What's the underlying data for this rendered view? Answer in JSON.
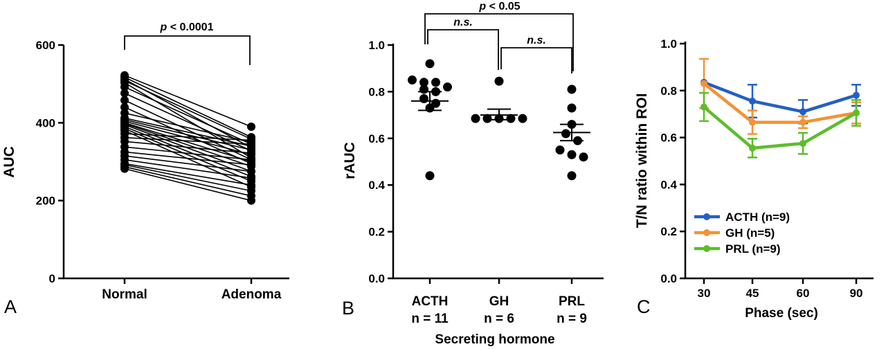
{
  "chart_data": [
    {
      "type": "line",
      "panel_label": "A",
      "ylabel": "AUC",
      "ylim": [
        0,
        600
      ],
      "yticks": [
        "0",
        "200",
        "400",
        "600"
      ],
      "categories": [
        "Normal",
        "Adenoma"
      ],
      "significance": {
        "prefix": "p",
        "text": " < 0.0001"
      },
      "pairs": [
        [
          522,
          390
        ],
        [
          517,
          363
        ],
        [
          512,
          336
        ],
        [
          508,
          358
        ],
        [
          503,
          310
        ],
        [
          492,
          345
        ],
        [
          476,
          328
        ],
        [
          458,
          305
        ],
        [
          440,
          295
        ],
        [
          425,
          350
        ],
        [
          412,
          340
        ],
        [
          408,
          330
        ],
        [
          404,
          318
        ],
        [
          400,
          300
        ],
        [
          398,
          288
        ],
        [
          395,
          275
        ],
        [
          390,
          262
        ],
        [
          385,
          250
        ],
        [
          380,
          235
        ],
        [
          372,
          355
        ],
        [
          362,
          345
        ],
        [
          352,
          322
        ],
        [
          338,
          305
        ],
        [
          325,
          292
        ],
        [
          315,
          275
        ],
        [
          305,
          258
        ],
        [
          295,
          240
        ],
        [
          292,
          225
        ],
        [
          287,
          212
        ],
        [
          282,
          200
        ]
      ]
    },
    {
      "type": "scatter",
      "panel_label": "B",
      "ylabel": "rAUC",
      "xlabel": "Secreting hormone",
      "ylim": [
        0.0,
        1.0
      ],
      "yticks": [
        "0.0",
        "0.2",
        "0.4",
        "0.6",
        "0.8",
        "1.0"
      ],
      "categories": [
        {
          "name": "ACTH",
          "n_label": "n = 11",
          "mean": 0.76,
          "sem_low": 0.72,
          "sem_high": 0.8,
          "points": [
            0.92,
            0.85,
            0.84,
            0.84,
            0.82,
            0.81,
            0.8,
            0.77,
            0.75,
            0.73,
            0.44
          ]
        },
        {
          "name": "GH",
          "n_label": "n = 6",
          "mean": 0.7,
          "sem_low": 0.68,
          "sem_high": 0.725,
          "points": [
            0.845,
            0.685,
            0.685,
            0.685,
            0.685,
            0.685
          ]
        },
        {
          "name": "PRL",
          "n_label": "n = 9",
          "mean": 0.625,
          "sem_low": 0.59,
          "sem_high": 0.66,
          "points": [
            0.81,
            0.73,
            0.66,
            0.62,
            0.59,
            0.55,
            0.53,
            0.52,
            0.44
          ]
        }
      ],
      "significance": [
        {
          "from": 0,
          "to": 1,
          "text": "n.s."
        },
        {
          "from": 1,
          "to": 2,
          "text": "n.s."
        },
        {
          "from": 0,
          "to": 2,
          "prefix": "p",
          "text": " < 0.05"
        }
      ]
    },
    {
      "type": "line",
      "panel_label": "C",
      "ylabel": "T/N ratio within ROI",
      "xlabel": "Phase (sec)",
      "ylim": [
        0.0,
        1.0
      ],
      "yticks": [
        "0.0",
        "0.2",
        "0.4",
        "0.6",
        "0.8",
        "1.0"
      ],
      "x": [
        "30",
        "45",
        "60",
        "90"
      ],
      "legend_position": "bottom-left",
      "series": [
        {
          "name": "ACTH (n=9)",
          "color": "#2360c4",
          "values": [
            0.835,
            0.755,
            0.71,
            0.78
          ],
          "err": [
            0.0,
            0.07,
            0.05,
            0.045
          ]
        },
        {
          "name": "GH (n=5)",
          "color": "#f39333",
          "values": [
            0.83,
            0.665,
            0.665,
            0.705
          ],
          "err": [
            0.105,
            0.05,
            0.025,
            0.045
          ]
        },
        {
          "name": "PRL (n=9)",
          "color": "#5cbd2b",
          "values": [
            0.73,
            0.555,
            0.575,
            0.705
          ],
          "err": [
            0.06,
            0.04,
            0.045,
            0.055
          ]
        }
      ]
    }
  ]
}
